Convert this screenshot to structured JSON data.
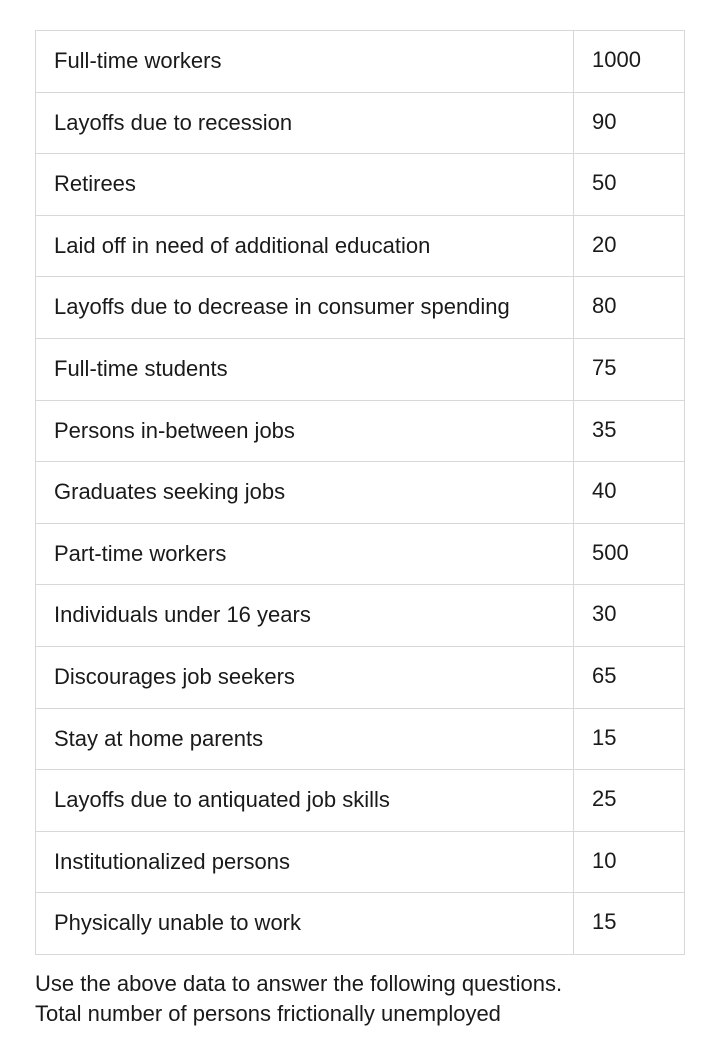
{
  "table": {
    "border_color": "#d8d8d8",
    "background_color": "#ffffff",
    "text_color": "#1a1a1a",
    "label_fontsize": 22,
    "value_fontsize": 22,
    "value_column_width": 110,
    "rows": [
      {
        "label": "Full-time workers",
        "value": "1000"
      },
      {
        "label": "Layoffs due to recession",
        "value": "90"
      },
      {
        "label": "Retirees",
        "value": "50"
      },
      {
        "label": "Laid off in need of additional education",
        "value": "20"
      },
      {
        "label": "Layoffs due to decrease in consumer spending",
        "value": "80"
      },
      {
        "label": "Full-time students",
        "value": "75"
      },
      {
        "label": "Persons in-between jobs",
        "value": "35"
      },
      {
        "label": "Graduates seeking jobs",
        "value": "40"
      },
      {
        "label": "Part-time workers",
        "value": "500"
      },
      {
        "label": "Individuals under 16 years",
        "value": "30"
      },
      {
        "label": "Discourages job seekers",
        "value": "65"
      },
      {
        "label": "Stay at home parents",
        "value": "15"
      },
      {
        "label": "Layoffs due to antiquated job skills",
        "value": "25"
      },
      {
        "label": "Institutionalized persons",
        "value": "10"
      },
      {
        "label": "Physically unable to work",
        "value": "15"
      }
    ]
  },
  "prompt": "Use the above data to answer the following questions. Total number of persons frictionally unemployed"
}
